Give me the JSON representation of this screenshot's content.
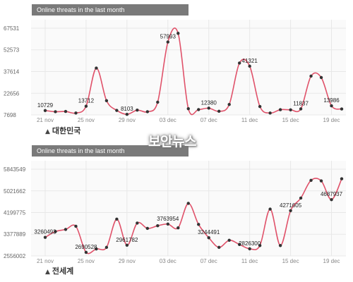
{
  "charts": [
    {
      "title": "Online threats in the last month",
      "region_label": "대한민국",
      "chart_data": {
        "type": "line",
        "title": "Online threats in the last month",
        "xlabel": "",
        "ylabel": "",
        "ylim": [
          7698,
          67531
        ],
        "yticks": [
          7698,
          22656,
          37614,
          52573,
          67531
        ],
        "ytick_labels": [
          "7698",
          "22656",
          "37614",
          "52573",
          "67531"
        ],
        "xticks": [
          0,
          4,
          8,
          12,
          16,
          20,
          24,
          28
        ],
        "xtick_labels": [
          "21 nov",
          "25 nov",
          "29 nov",
          "03 dec",
          "07 dec",
          "11 dec",
          "15 dec",
          "19 dec"
        ],
        "color": "#e0526a",
        "x": [
          0,
          1,
          2,
          3,
          4,
          5,
          6,
          7,
          8,
          9,
          10,
          11,
          12,
          13,
          14,
          15,
          16,
          17,
          18,
          19,
          20,
          21,
          22,
          23,
          24,
          25,
          26,
          27,
          28,
          29
        ],
        "values": [
          10729,
          9900,
          10100,
          9000,
          13712,
          40000,
          17500,
          10800,
          8103,
          11000,
          9900,
          16500,
          57993,
          64000,
          12000,
          11400,
          12380,
          10200,
          14900,
          43500,
          41321,
          13500,
          9000,
          11300,
          11200,
          11837,
          34500,
          33500,
          13986,
          11800
        ],
        "data_labels": [
          {
            "i": 0,
            "text": "10729"
          },
          {
            "i": 4,
            "text": "13712"
          },
          {
            "i": 8,
            "text": "8103"
          },
          {
            "i": 12,
            "text": "57993"
          },
          {
            "i": 16,
            "text": "12380"
          },
          {
            "i": 20,
            "text": "41321"
          },
          {
            "i": 25,
            "text": "11837"
          },
          {
            "i": 28,
            "text": "13986"
          }
        ]
      }
    },
    {
      "title": "Online threats in the last month",
      "region_label": "전세계",
      "chart_data": {
        "type": "line",
        "title": "Online threats in the last month",
        "xlabel": "",
        "ylabel": "",
        "ylim": [
          2556002,
          5843549
        ],
        "yticks": [
          2556002,
          3377889,
          4199775,
          5021662,
          5843549
        ],
        "ytick_labels": [
          "2556002",
          "3377889",
          "4199775",
          "5021662",
          "5843549"
        ],
        "xticks": [
          0,
          4,
          8,
          12,
          16,
          20,
          24,
          28
        ],
        "xtick_labels": [
          "21 nov",
          "25 nov",
          "29 nov",
          "03 dec",
          "07 dec",
          "11 dec",
          "15 dec",
          "19 dec"
        ],
        "color": "#e0526a",
        "x": [
          0,
          1,
          2,
          3,
          4,
          5,
          6,
          7,
          8,
          9,
          10,
          11,
          12,
          13,
          14,
          15,
          16,
          17,
          18,
          19,
          20,
          21,
          22,
          23,
          24,
          25,
          26,
          27,
          28,
          29
        ],
        "values": [
          3260493,
          3480000,
          3560000,
          3680000,
          2690528,
          2820000,
          2880000,
          3950000,
          2961782,
          3800000,
          3600000,
          3700000,
          3763954,
          3620000,
          4550000,
          3750000,
          3244491,
          2880000,
          3150000,
          2990000,
          2826300,
          2950000,
          4330000,
          2950000,
          4271605,
          4750000,
          5420000,
          5400000,
          4687937,
          5480000
        ],
        "data_labels": [
          {
            "i": 0,
            "text": "3260493"
          },
          {
            "i": 4,
            "text": "2690528"
          },
          {
            "i": 8,
            "text": "2961782"
          },
          {
            "i": 12,
            "text": "3763954"
          },
          {
            "i": 16,
            "text": "3244491"
          },
          {
            "i": 20,
            "text": "2826300"
          },
          {
            "i": 24,
            "text": "4271605"
          },
          {
            "i": 28,
            "text": "4687937"
          }
        ]
      }
    }
  ],
  "watermark": "보안뉴스"
}
